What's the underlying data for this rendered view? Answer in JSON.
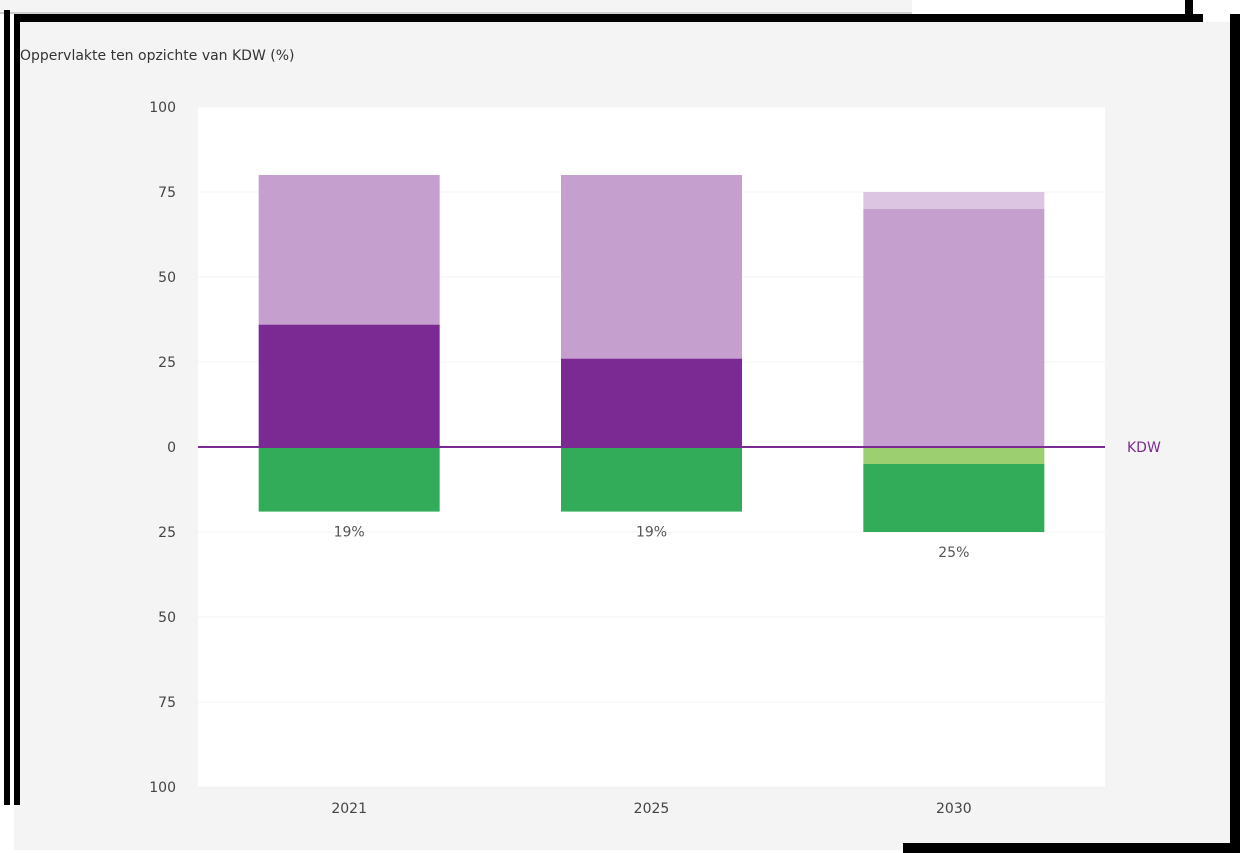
{
  "chart_data": {
    "type": "bar",
    "title": "Oppervlakte ten opzichte van KDW (%)",
    "ylim": [
      -100,
      100
    ],
    "y_ticks": [
      100,
      75,
      50,
      25,
      0,
      -25,
      -50,
      -75,
      -100
    ],
    "y_tick_labels": [
      "100",
      "75",
      "50",
      "25",
      "0",
      "25",
      "50",
      "75",
      "100"
    ],
    "categories": [
      "2021",
      "2025",
      "2030"
    ],
    "reference_line": {
      "value": 0,
      "label": "KDW"
    },
    "series": [
      {
        "color": "#7b2993",
        "values": [
          36,
          26,
          0
        ]
      },
      {
        "color": "#c5a0cf",
        "values": [
          44,
          54,
          70
        ]
      },
      {
        "color": "#dcc5e3",
        "values": [
          0,
          0,
          5
        ]
      },
      {
        "color": "#9bcf6f",
        "values": [
          0,
          0,
          -5
        ]
      },
      {
        "color": "#33ac59",
        "values": [
          -19,
          -19,
          -20
        ]
      }
    ],
    "data_labels": [
      "19%",
      "19%",
      "25%"
    ],
    "colors": {
      "background": "#f4f4f4",
      "plot_background": "#ffffff",
      "kdw_line": "#7b2a93"
    }
  }
}
